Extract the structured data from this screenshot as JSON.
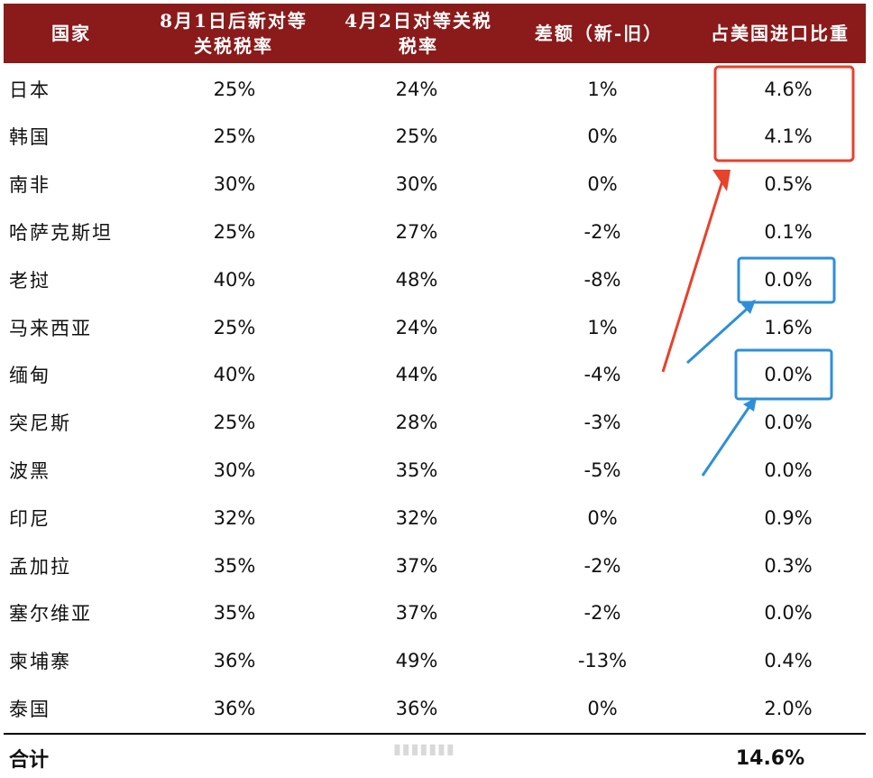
{
  "header": {
    "country": "国家",
    "new_rate": [
      "8月1日后新对等",
      "关税税率"
    ],
    "apr_rate": [
      "4月2日对等关税",
      "税率"
    ],
    "diff": "差额（新-旧）",
    "share": "占美国进口比重"
  },
  "rows": [
    {
      "country": "日本",
      "new": "25%",
      "old": "24%",
      "diff": "1%",
      "share": "4.6%"
    },
    {
      "country": "韩国",
      "new": "25%",
      "old": "25%",
      "diff": "0%",
      "share": "4.1%"
    },
    {
      "country": "南非",
      "new": "30%",
      "old": "30%",
      "diff": "0%",
      "share": "0.5%"
    },
    {
      "country": "哈萨克斯坦",
      "new": "25%",
      "old": "27%",
      "diff": "-2%",
      "share": "0.1%"
    },
    {
      "country": "老挝",
      "new": "40%",
      "old": "48%",
      "diff": "-8%",
      "share": "0.0%"
    },
    {
      "country": "马来西亚",
      "new": "25%",
      "old": "24%",
      "diff": "1%",
      "share": "1.6%"
    },
    {
      "country": "缅甸",
      "new": "40%",
      "old": "44%",
      "diff": "-4%",
      "share": "0.0%"
    },
    {
      "country": "突尼斯",
      "new": "25%",
      "old": "28%",
      "diff": "-3%",
      "share": "0.0%"
    },
    {
      "country": "波黑",
      "new": "30%",
      "old": "35%",
      "diff": "-5%",
      "share": "0.0%"
    },
    {
      "country": "印尼",
      "new": "32%",
      "old": "32%",
      "diff": "0%",
      "share": "0.9%"
    },
    {
      "country": "孟加拉",
      "new": "35%",
      "old": "37%",
      "diff": "-2%",
      "share": "0.3%"
    },
    {
      "country": "塞尔维亚",
      "new": "35%",
      "old": "37%",
      "diff": "-2%",
      "share": "0.0%"
    },
    {
      "country": "柬埔寨",
      "new": "36%",
      "old": "49%",
      "diff": "-13%",
      "share": "0.4%"
    },
    {
      "country": "泰国",
      "new": "36%",
      "old": "36%",
      "diff": "0%",
      "share": "2.0%"
    }
  ],
  "total": {
    "label": "合计",
    "share": "14.6%"
  },
  "colors": {
    "header_bg": "#8b1a1a",
    "red_annotation": "#e8412c",
    "blue_annotation": "#2e8fd8"
  }
}
